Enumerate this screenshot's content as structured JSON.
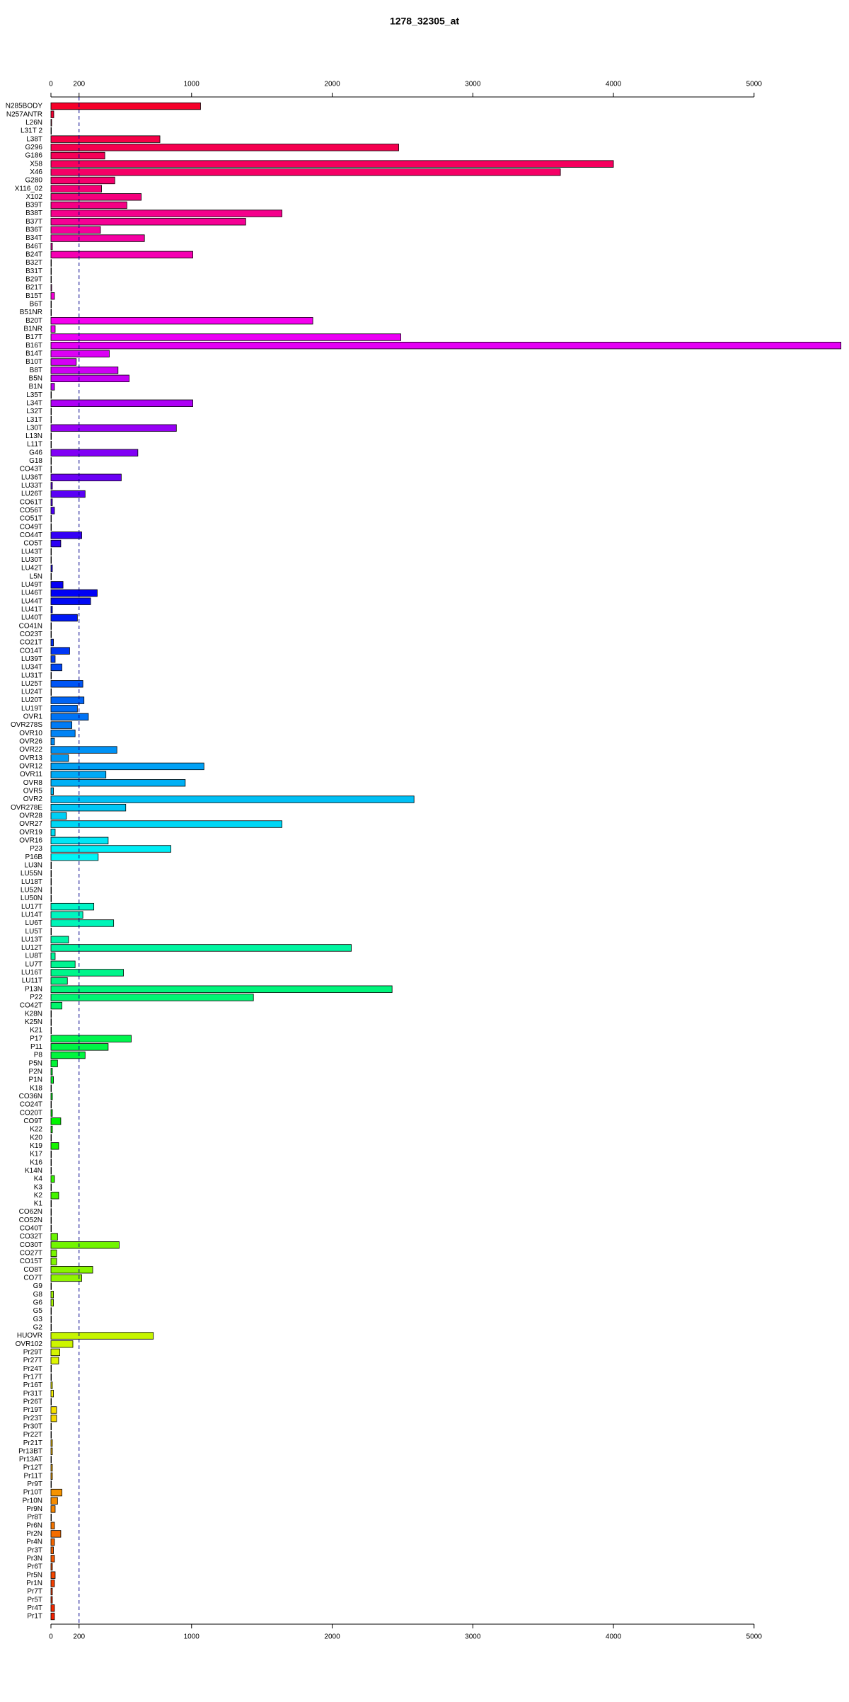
{
  "chart_data": {
    "type": "barh",
    "title": "1278_32305_at",
    "categories": [
      "N285BODY",
      "N257ANTR",
      "L26N",
      "L31T 2",
      "L38T",
      "G296",
      "G186",
      "X58",
      "X46",
      "G280",
      "X116_02",
      "X102",
      "B39T",
      "B38T",
      "B37T",
      "B36T",
      "B34T",
      "B46T",
      "B24T",
      "B32T",
      "B31T",
      "B29T",
      "B21T",
      "B15T",
      "B6T",
      "B51NR",
      "B20T",
      "B1NR",
      "B17T",
      "B16T",
      "B14T",
      "B10T",
      "B8T",
      "B5N",
      "B1N",
      "L35T",
      "L34T",
      "L32T",
      "L31T",
      "L30T",
      "L13N",
      "L11T",
      "G46",
      "G18",
      "CO43T",
      "LU36T",
      "LU33T",
      "LU26T",
      "CO61T",
      "CO56T",
      "CO51T",
      "CO49T",
      "CO44T",
      "CO5T",
      "LU43T",
      "LU30T",
      "LU42T",
      "L5N",
      "LU49T",
      "LU46T",
      "LU44T",
      "LU41T",
      "LU40T",
      "CO41N",
      "CO23T",
      "CO21T",
      "CO14T",
      "LU39T",
      "LU34T",
      "LU31T",
      "LU25T",
      "LU24T",
      "LU20T",
      "LU19T",
      "OVR1",
      "OVR278S",
      "OVR10",
      "OVR26",
      "OVR22",
      "OVR13",
      "OVR12",
      "OVR11",
      "OVR8",
      "OVR5",
      "OVR2",
      "OVR278E",
      "OVR28",
      "OVR27",
      "OVR19",
      "OVR16",
      "P23",
      "P16B",
      "LU3N",
      "LU55N",
      "LU18T",
      "LU52N",
      "LU50N",
      "LU17T",
      "LU14T",
      "LU6T",
      "LU5T",
      "LU13T",
      "LU12T",
      "LU8T",
      "LU7T",
      "LU16T",
      "LU11T",
      "P13N",
      "P22",
      "CO42T",
      "K28N",
      "K25N",
      "K21",
      "P17",
      "P11",
      "P8",
      "P5N",
      "P2N",
      "P1N",
      "K18",
      "CO36N",
      "CO24T",
      "CO20T",
      "CO9T",
      "K22",
      "K20",
      "K19",
      "K17",
      "K16",
      "K14N",
      "K4",
      "K3",
      "K2",
      "K1",
      "CO62N",
      "CO52N",
      "CO40T",
      "CO32T",
      "CO30T",
      "CO27T",
      "CO15T",
      "CO8T",
      "CO7T",
      "G9",
      "G8",
      "G6",
      "G5",
      "G3",
      "G2",
      "HUOVR",
      "OVR102",
      "Pr29T",
      "Pr27T",
      "Pr24T",
      "Pr17T",
      "Pr16T",
      "Pr31T",
      "Pr26T",
      "Pr19T",
      "Pr23T",
      "Pr30T",
      "Pr22T",
      "Pr21T",
      "Pr13BT",
      "Pr13AT",
      "Pr12T",
      "Pr11T",
      "Pr9T",
      "Pr10T",
      "Pr10N",
      "Pr9N",
      "Pr8T",
      "Pr6N",
      "Pr2N",
      "Pr4N",
      "Pr3T",
      "Pr3N",
      "Pr6T",
      "Pr5N",
      "Pr1N",
      "Pr7T",
      "Pr5T",
      "Pr4T",
      "Pr1T"
    ],
    "values": [
      1064,
      20,
      5,
      3,
      775,
      2473,
      383,
      4000,
      3623,
      454,
      360,
      642,
      540,
      1643,
      1385,
      352,
      665,
      10,
      1009,
      3,
      3,
      3,
      5,
      25,
      3,
      3,
      1862,
      30,
      2488,
      5618,
      415,
      180,
      477,
      556,
      25,
      3,
      1009,
      3,
      3,
      892,
      3,
      3,
      618,
      3,
      3,
      500,
      10,
      243,
      10,
      25,
      3,
      3,
      219,
      70,
      3,
      3,
      10,
      3,
      86,
      329,
      282,
      10,
      188,
      3,
      3,
      18,
      133,
      30,
      78,
      3,
      227,
      3,
      235,
      188,
      266,
      149,
      172,
      25,
      469,
      125,
      1088,
      391,
      955,
      18,
      2582,
      532,
      110,
      1643,
      30,
      407,
      853,
      336,
      3,
      3,
      3,
      3,
      3,
      305,
      227,
      446,
      3,
      125,
      2136,
      30,
      172,
      516,
      117,
      2426,
      1440,
      78,
      3,
      3,
      3,
      571,
      407,
      243,
      47,
      10,
      18,
      3,
      10,
      3,
      10,
      70,
      10,
      3,
      55,
      3,
      3,
      3,
      25,
      3,
      55,
      3,
      3,
      3,
      3,
      47,
      485,
      40,
      40,
      297,
      219,
      3,
      18,
      18,
      3,
      3,
      3,
      728,
      156,
      63,
      55,
      3,
      3,
      10,
      18,
      3,
      40,
      40,
      3,
      3,
      10,
      10,
      3,
      10,
      10,
      3,
      78,
      47,
      30,
      3,
      25,
      70,
      25,
      18,
      25,
      10,
      30,
      25,
      10,
      10,
      25,
      25
    ],
    "color_hue_range": [
      350,
      8
    ],
    "xlim": [
      0,
      5650
    ],
    "xticks": [
      0,
      200,
      1000,
      2000,
      3000,
      4000,
      5000
    ],
    "reference_line": 200
  }
}
